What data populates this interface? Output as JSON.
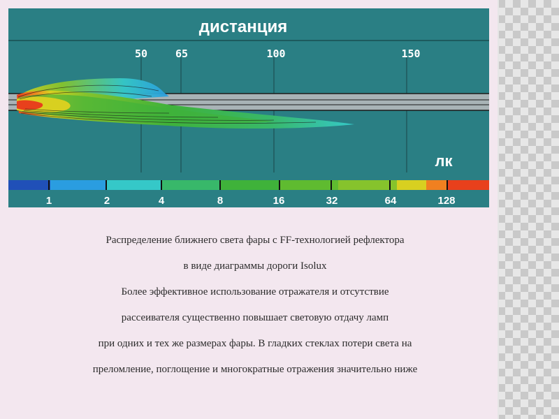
{
  "diagram": {
    "title": "дистанция",
    "distance_ticks": [
      {
        "label": "50",
        "value": 50
      },
      {
        "label": "65",
        "value": 65
      },
      {
        "label": "100",
        "value": 100
      },
      {
        "label": "150",
        "value": 150
      }
    ],
    "unit_label": "лк",
    "scale_labels": [
      "1",
      "2",
      "4",
      "8",
      "16",
      "32",
      "64",
      "128"
    ],
    "scale_colors": [
      "#2050b8",
      "#2a9de0",
      "#35c8c8",
      "#38b86a",
      "#3fb23a",
      "#86c32c",
      "#d8d020",
      "#e8401c"
    ],
    "panel_color": "#2a7f84"
  },
  "caption": {
    "line1": "Распределение ближнего света фары с FF-технологией рефлектора",
    "line2": "в виде диаграммы дороги Isolux",
    "line3": "Более эффективное использование отражателя и отсутствие",
    "line4": "рассеивателя  существенно повышает световую отдачу ламп",
    "line5": "при одних и тех же размерах фары. В гладких стеклах потери света на",
    "line6": "преломление, поглощение и многократные отражения значительно ниже"
  }
}
